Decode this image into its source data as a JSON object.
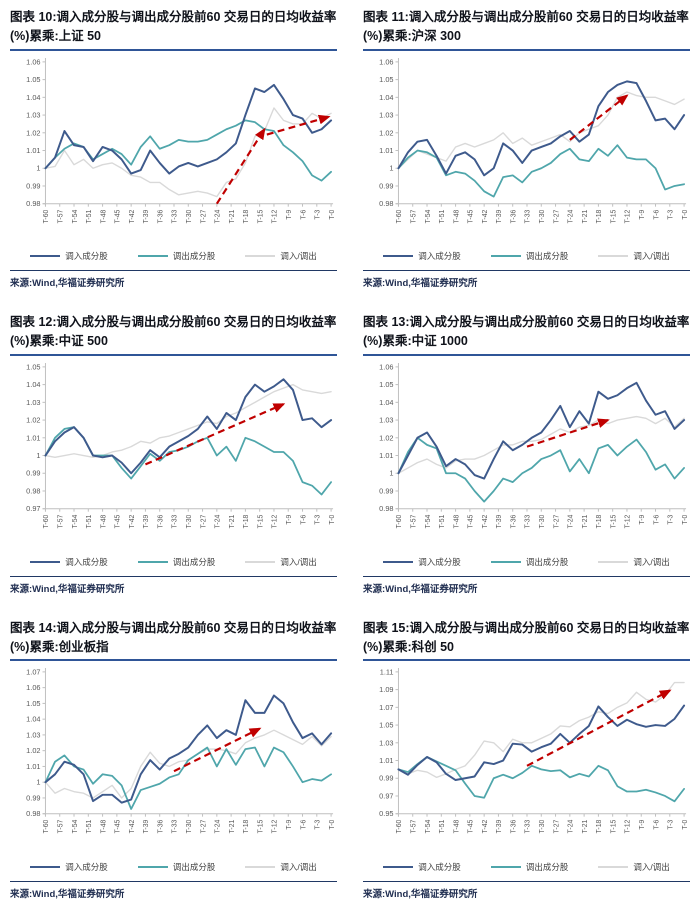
{
  "page": {
    "background": "#ffffff"
  },
  "legend": [
    "调入成分股",
    "调出成分股",
    "调入/调出"
  ],
  "source_note": "来源:Wind,华福证券研究所",
  "colors": {
    "in": "#3E5A8C",
    "out": "#4FA6AB",
    "ratio": "#D9D9D9",
    "arrow": "#C00000",
    "title_rule": "#2F5597",
    "source_rule": "#203864",
    "axis": "#BFBFBF",
    "tick_text": "#595959",
    "title_text": "#10131B"
  },
  "x_values": [
    -60,
    -58,
    -56,
    -54,
    -52,
    -50,
    -48,
    -46,
    -44,
    -42,
    -40,
    -38,
    -36,
    -34,
    -32,
    -30,
    -28,
    -26,
    -24,
    -22,
    -20,
    -18,
    -16,
    -14,
    -12,
    -10,
    -8,
    -6,
    -4,
    -2,
    0
  ],
  "xtick_labels": [
    "T-60",
    "T-57",
    "T-54",
    "T-51",
    "T-48",
    "T-45",
    "T-42",
    "T-39",
    "T-36",
    "T-33",
    "T-30",
    "T-27",
    "T-24",
    "T-21",
    "T-18",
    "T-15",
    "T-12",
    "T-9",
    "T-6",
    "T-3",
    "T-0"
  ],
  "chart_data": [
    {
      "figure_no": "图表 10",
      "title": "图表 10:调入成分股与调出成分股前60 交易日的日均收益率(%)累乘:上证 50",
      "index_name": "上证 50",
      "type": "line",
      "xlim": [
        -60,
        0
      ],
      "ylim": [
        0.98,
        1.06
      ],
      "ystep": 0.01,
      "series": [
        {
          "name": "调入成分股",
          "color_key": "in",
          "values": [
            1.0,
            1.006,
            1.021,
            1.013,
            1.012,
            1.004,
            1.012,
            1.01,
            1.005,
            0.997,
            0.999,
            1.01,
            1.003,
            0.997,
            1.001,
            1.003,
            1.001,
            1.003,
            1.005,
            1.009,
            1.014,
            1.03,
            1.045,
            1.043,
            1.047,
            1.039,
            1.03,
            1.028,
            1.02,
            1.022,
            1.027
          ]
        },
        {
          "name": "调出成分股",
          "color_key": "out",
          "values": [
            1.0,
            1.006,
            1.011,
            1.014,
            1.012,
            1.005,
            1.008,
            1.011,
            1.008,
            1.002,
            1.012,
            1.018,
            1.011,
            1.013,
            1.016,
            1.015,
            1.015,
            1.016,
            1.019,
            1.022,
            1.024,
            1.027,
            1.026,
            1.022,
            1.021,
            1.013,
            1.009,
            1.004,
            0.996,
            0.993,
            0.998
          ]
        },
        {
          "name": "调入/调出",
          "color_key": "ratio",
          "values": [
            1.0,
            1.001,
            1.01,
            1.002,
            1.005,
            1.0,
            1.002,
            1.003,
            1.0,
            0.996,
            0.995,
            0.992,
            0.992,
            0.988,
            0.985,
            0.986,
            0.987,
            0.986,
            0.984,
            0.992,
            0.994,
            1.003,
            1.018,
            1.021,
            1.034,
            1.027,
            1.025,
            1.025,
            1.031,
            1.028,
            1.031
          ]
        }
      ],
      "arrows": [
        {
          "x1": -24,
          "y1": 0.98,
          "x2": -14,
          "y2": 1.022
        },
        {
          "x1": -13.5,
          "y1": 1.019,
          "x2": -0.5,
          "y2": 1.029
        }
      ]
    },
    {
      "figure_no": "图表 11",
      "title": "图表 11:调入成分股与调出成分股前60 交易日的日均收益率(%)累乘:沪深 300",
      "index_name": "沪深 300",
      "type": "line",
      "xlim": [
        -60,
        0
      ],
      "ylim": [
        0.98,
        1.06
      ],
      "ystep": 0.01,
      "series": [
        {
          "name": "调入成分股",
          "color_key": "in",
          "values": [
            1.0,
            1.009,
            1.015,
            1.016,
            1.007,
            0.997,
            1.007,
            1.009,
            1.005,
            0.996,
            1.0,
            1.014,
            1.01,
            1.003,
            1.01,
            1.012,
            1.014,
            1.018,
            1.021,
            1.015,
            1.019,
            1.035,
            1.043,
            1.047,
            1.049,
            1.048,
            1.038,
            1.027,
            1.028,
            1.022,
            1.03
          ]
        },
        {
          "name": "调出成分股",
          "color_key": "out",
          "values": [
            1.0,
            1.006,
            1.01,
            1.009,
            1.006,
            0.996,
            0.998,
            0.997,
            0.993,
            0.987,
            0.984,
            0.995,
            0.996,
            0.992,
            0.998,
            1.0,
            1.003,
            1.008,
            1.011,
            1.005,
            1.004,
            1.011,
            1.007,
            1.013,
            1.006,
            1.005,
            1.005,
            1.0,
            0.988,
            0.99,
            0.991
          ]
        },
        {
          "name": "调入/调出",
          "color_key": "ratio",
          "values": [
            1.0,
            1.005,
            1.01,
            1.008,
            1.006,
            1.004,
            1.012,
            1.014,
            1.012,
            1.014,
            1.016,
            1.02,
            1.014,
            1.017,
            1.013,
            1.015,
            1.017,
            1.019,
            1.015,
            1.02,
            1.022,
            1.024,
            1.03,
            1.04,
            1.043,
            1.041,
            1.04,
            1.04,
            1.038,
            1.036,
            1.039
          ]
        }
      ],
      "arrows": [
        {
          "x1": -24,
          "y1": 1.016,
          "x2": -12,
          "y2": 1.041
        }
      ]
    },
    {
      "figure_no": "图表 12",
      "title": "图表 12:调入成分股与调出成分股前60 交易日的日均收益率(%)累乘:中证 500",
      "index_name": "中证 500",
      "type": "line",
      "xlim": [
        -60,
        0
      ],
      "ylim": [
        0.97,
        1.05
      ],
      "ystep": 0.01,
      "series": [
        {
          "name": "调入成分股",
          "color_key": "in",
          "values": [
            1.0,
            1.008,
            1.013,
            1.016,
            1.01,
            1.0,
            0.999,
            1.0,
            0.996,
            0.99,
            0.996,
            1.003,
            0.999,
            1.005,
            1.008,
            1.011,
            1.015,
            1.022,
            1.015,
            1.024,
            1.02,
            1.033,
            1.04,
            1.036,
            1.039,
            1.043,
            1.037,
            1.02,
            1.021,
            1.016,
            1.02
          ]
        },
        {
          "name": "调出成分股",
          "color_key": "out",
          "values": [
            1.0,
            1.01,
            1.015,
            1.016,
            1.01,
            1.0,
            1.0,
            1.0,
            0.993,
            0.987,
            0.994,
            1.001,
            0.997,
            1.002,
            1.003,
            1.005,
            1.008,
            1.01,
            1.0,
            1.005,
            0.997,
            1.01,
            1.008,
            1.005,
            1.002,
            1.002,
            0.997,
            0.985,
            0.983,
            0.978,
            0.985
          ]
        },
        {
          "name": "调入/调出",
          "color_key": "ratio",
          "values": [
            1.0,
            0.999,
            1.0,
            1.001,
            1.0,
            0.999,
            1.0,
            1.002,
            1.003,
            1.005,
            1.008,
            1.007,
            1.01,
            1.011,
            1.013,
            1.015,
            1.017,
            1.019,
            1.018,
            1.022,
            1.024,
            1.027,
            1.03,
            1.033,
            1.036,
            1.038,
            1.04,
            1.037,
            1.036,
            1.035,
            1.036
          ]
        }
      ],
      "arrows": [
        {
          "x1": -39,
          "y1": 0.995,
          "x2": -10,
          "y2": 1.029
        }
      ]
    },
    {
      "figure_no": "图表 13",
      "title": "图表 13:调入成分股与调出成分股前60 交易日的日均收益率(%)累乘:中证 1000",
      "index_name": "中证 1000",
      "type": "line",
      "xlim": [
        -60,
        0
      ],
      "ylim": [
        0.98,
        1.06
      ],
      "ystep": 0.01,
      "series": [
        {
          "name": "调入成分股",
          "color_key": "in",
          "values": [
            1.0,
            1.01,
            1.02,
            1.023,
            1.015,
            1.004,
            1.008,
            1.005,
            0.999,
            0.997,
            1.008,
            1.018,
            1.013,
            1.016,
            1.02,
            1.023,
            1.03,
            1.038,
            1.026,
            1.035,
            1.028,
            1.046,
            1.042,
            1.044,
            1.048,
            1.051,
            1.041,
            1.033,
            1.035,
            1.025,
            1.03
          ]
        },
        {
          "name": "调出成分股",
          "color_key": "out",
          "values": [
            1.0,
            1.012,
            1.02,
            1.016,
            1.014,
            1.0,
            1.0,
            0.997,
            0.99,
            0.984,
            0.99,
            0.997,
            0.995,
            1.0,
            1.003,
            1.008,
            1.01,
            1.013,
            1.001,
            1.008,
            1.0,
            1.014,
            1.016,
            1.01,
            1.015,
            1.019,
            1.012,
            1.002,
            1.005,
            0.997,
            1.003
          ]
        },
        {
          "name": "调入/调出",
          "color_key": "ratio",
          "values": [
            1.0,
            1.003,
            1.006,
            1.008,
            1.005,
            1.003,
            1.007,
            1.008,
            1.008,
            1.01,
            1.013,
            1.016,
            1.016,
            1.018,
            1.018,
            1.019,
            1.022,
            1.025,
            1.023,
            1.026,
            1.027,
            1.03,
            1.028,
            1.03,
            1.031,
            1.032,
            1.031,
            1.028,
            1.031,
            1.026,
            1.031
          ]
        }
      ],
      "arrows": [
        {
          "x1": -33,
          "y1": 1.015,
          "x2": -16,
          "y2": 1.03
        }
      ]
    },
    {
      "figure_no": "图表 14",
      "title": "图表 14:调入成分股与调出成分股前60 交易日的日均收益率(%)累乘:创业板指",
      "index_name": "创业板指",
      "type": "line",
      "xlim": [
        -60,
        0
      ],
      "ylim": [
        0.98,
        1.07
      ],
      "ystep": 0.01,
      "series": [
        {
          "name": "调入成分股",
          "color_key": "in",
          "values": [
            1.0,
            1.005,
            1.013,
            1.011,
            1.005,
            0.988,
            0.992,
            0.992,
            0.987,
            0.989,
            1.005,
            1.014,
            1.008,
            1.015,
            1.018,
            1.022,
            1.03,
            1.036,
            1.028,
            1.033,
            1.03,
            1.052,
            1.044,
            1.044,
            1.055,
            1.05,
            1.038,
            1.028,
            1.031,
            1.024,
            1.031
          ]
        },
        {
          "name": "调出成分股",
          "color_key": "out",
          "values": [
            1.0,
            1.013,
            1.017,
            1.01,
            1.008,
            0.999,
            1.005,
            1.004,
            0.998,
            0.983,
            0.995,
            0.997,
            0.999,
            1.003,
            1.005,
            1.014,
            1.018,
            1.022,
            1.01,
            1.021,
            1.011,
            1.021,
            1.022,
            1.01,
            1.022,
            1.019,
            1.01,
            1.0,
            1.002,
            1.001,
            1.005
          ]
        },
        {
          "name": "调入/调出",
          "color_key": "ratio",
          "values": [
            1.0,
            0.993,
            0.996,
            0.994,
            0.993,
            0.99,
            0.994,
            0.998,
            0.99,
            0.996,
            1.01,
            1.019,
            1.012,
            1.01,
            1.013,
            1.014,
            1.018,
            1.021,
            1.021,
            1.02,
            1.018,
            1.025,
            1.028,
            1.03,
            1.033,
            1.03,
            1.027,
            1.024,
            1.029,
            1.023,
            1.029
          ]
        }
      ],
      "arrows": [
        {
          "x1": -33,
          "y1": 1.007,
          "x2": -15,
          "y2": 1.034
        }
      ]
    },
    {
      "figure_no": "图表 15",
      "title": "图表 15:调入成分股与调出成分股前60 交易日的日均收益率(%)累乘:科创 50",
      "index_name": "科创 50",
      "type": "line",
      "xlim": [
        -60,
        0
      ],
      "ylim": [
        0.95,
        1.11
      ],
      "ystep": 0.02,
      "series": [
        {
          "name": "调入成分股",
          "color_key": "in",
          "values": [
            1.0,
            0.994,
            1.005,
            1.014,
            1.008,
            0.995,
            0.988,
            0.99,
            0.992,
            1.008,
            1.006,
            1.01,
            1.029,
            1.028,
            1.02,
            1.025,
            1.029,
            1.04,
            1.03,
            1.04,
            1.049,
            1.071,
            1.059,
            1.049,
            1.056,
            1.051,
            1.048,
            1.05,
            1.049,
            1.057,
            1.072
          ]
        },
        {
          "name": "调出成分股",
          "color_key": "out",
          "values": [
            1.0,
            0.997,
            1.006,
            1.014,
            1.009,
            1.004,
            0.999,
            0.984,
            0.97,
            0.968,
            0.99,
            0.994,
            0.99,
            0.996,
            1.004,
            1.0,
            0.998,
            0.999,
            0.991,
            0.995,
            0.992,
            1.004,
            0.999,
            0.981,
            0.975,
            0.975,
            0.977,
            0.974,
            0.97,
            0.964,
            0.978
          ]
        },
        {
          "name": "调入/调出",
          "color_key": "ratio",
          "values": [
            1.0,
            0.995,
            0.999,
            0.997,
            0.991,
            0.995,
            1.0,
            1.004,
            1.016,
            1.032,
            1.03,
            1.02,
            1.034,
            1.03,
            1.03,
            1.035,
            1.04,
            1.049,
            1.048,
            1.055,
            1.059,
            1.065,
            1.063,
            1.07,
            1.075,
            1.087,
            1.079,
            1.076,
            1.084,
            1.098,
            1.098
          ]
        }
      ],
      "arrows": [
        {
          "x1": -33,
          "y1": 1.004,
          "x2": -3,
          "y2": 1.089
        }
      ]
    }
  ]
}
